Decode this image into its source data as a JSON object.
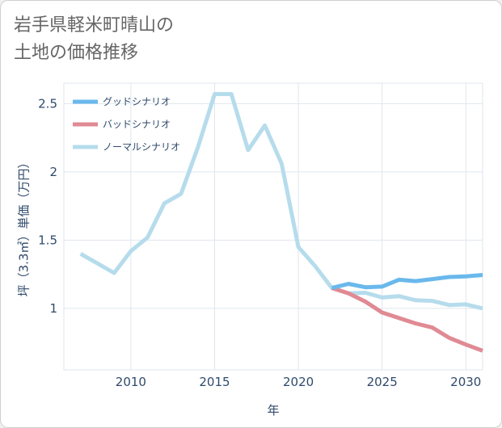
{
  "header": {
    "title_line1": "岩手県軽米町晴山の",
    "title_line2": "土地の価格推移"
  },
  "chart_data": {
    "type": "line",
    "xlabel": "年",
    "ylabel": "坪（3.3㎡）単価（万円）",
    "xlim": [
      2006,
      2031
    ],
    "ylim": [
      0.55,
      2.65
    ],
    "x_ticks": [
      2010,
      2015,
      2020,
      2025,
      2030
    ],
    "y_ticks": [
      1,
      1.5,
      2,
      2.5
    ],
    "y_tick_labels": [
      "1",
      "1.5",
      "2",
      "2.5"
    ],
    "grid": true,
    "legend_position": "top-left",
    "series": [
      {
        "name": "グッドシナリオ",
        "color": "#6ab8ec",
        "x": [
          2022,
          2023,
          2024,
          2025,
          2026,
          2027,
          2028,
          2029,
          2030,
          2031
        ],
        "y": [
          1.15,
          1.18,
          1.155,
          1.16,
          1.21,
          1.2,
          1.215,
          1.23,
          1.235,
          1.245
        ]
      },
      {
        "name": "バッドシナリオ",
        "color": "#e08a94",
        "x": [
          2022,
          2023,
          2024,
          2025,
          2026,
          2027,
          2028,
          2029,
          2030,
          2031
        ],
        "y": [
          1.15,
          1.11,
          1.05,
          0.97,
          0.93,
          0.89,
          0.86,
          0.785,
          0.735,
          0.69
        ]
      },
      {
        "name": "ノーマルシナリオ",
        "color": "#b6dcec",
        "x": [
          2007,
          2008,
          2009,
          2010,
          2011,
          2012,
          2013,
          2014,
          2015,
          2016,
          2017,
          2018,
          2019,
          2020,
          2021,
          2022,
          2023,
          2024,
          2025,
          2026,
          2027,
          2028,
          2029,
          2030,
          2031
        ],
        "y": [
          1.4,
          1.33,
          1.26,
          1.42,
          1.52,
          1.77,
          1.84,
          2.18,
          2.57,
          2.57,
          2.16,
          2.34,
          2.06,
          1.45,
          1.31,
          1.15,
          1.11,
          1.115,
          1.08,
          1.09,
          1.06,
          1.055,
          1.025,
          1.03,
          1.0
        ]
      }
    ]
  }
}
